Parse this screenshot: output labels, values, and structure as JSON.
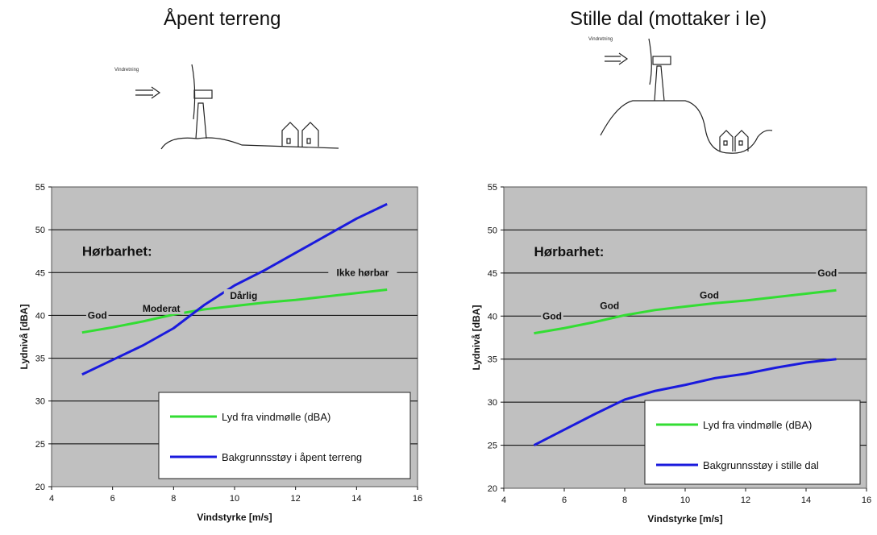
{
  "panels": [
    {
      "title": "Åpent terreng",
      "sketch_label": "Vindretning",
      "heading": "Hørbarhet:",
      "annotations": [
        {
          "text": "God",
          "x": 5.5,
          "y": 40
        },
        {
          "text": "Moderat",
          "x": 7.6,
          "y": 40.8
        },
        {
          "text": "Dårlig",
          "x": 10.3,
          "y": 42.3
        },
        {
          "text": "Ikke hørbar",
          "x": 14.2,
          "y": 45
        }
      ]
    },
    {
      "title": "Stille dal (mottaker i le)",
      "sketch_label": "Vindretning",
      "heading": "Hørbarhet:",
      "annotations": [
        {
          "text": "God",
          "x": 5.6,
          "y": 40
        },
        {
          "text": "God",
          "x": 7.5,
          "y": 41.2
        },
        {
          "text": "God",
          "x": 10.8,
          "y": 42.4
        },
        {
          "text": "God",
          "x": 14.7,
          "y": 45
        }
      ]
    }
  ],
  "colors": {
    "plot_bg": "#c0c0c0",
    "green": "#33dd33",
    "blue": "#1a1add",
    "grid": "#000000"
  },
  "chart_data": [
    {
      "type": "line",
      "xlabel": "Vindstyrke [m/s]",
      "ylabel": "Lydnivå [dBA]",
      "xlim": [
        4,
        16
      ],
      "ylim": [
        20,
        55
      ],
      "xticks": [
        4,
        6,
        8,
        10,
        12,
        14,
        16
      ],
      "yticks": [
        20,
        25,
        30,
        35,
        40,
        45,
        50,
        55
      ],
      "grid": "horizontal",
      "legend_position": "bottom-right",
      "series": [
        {
          "name": "Lyd fra vindmølle (dBA)",
          "color": "#33dd33",
          "x": [
            5,
            6,
            7,
            8,
            9,
            10,
            11,
            12,
            13,
            14,
            15
          ],
          "y": [
            38,
            38.6,
            39.3,
            40.1,
            40.7,
            41.1,
            41.5,
            41.8,
            42.2,
            42.6,
            43
          ]
        },
        {
          "name": "Bakgrunnsstøy i åpent terreng",
          "color": "#1a1add",
          "x": [
            5,
            6,
            7,
            8,
            9,
            10,
            11,
            12,
            13,
            14,
            15
          ],
          "y": [
            33.1,
            34.8,
            36.5,
            38.5,
            41.2,
            43.5,
            45.3,
            47.3,
            49.3,
            51.3,
            53
          ]
        }
      ]
    },
    {
      "type": "line",
      "xlabel": "Vindstyrke [m/s]",
      "ylabel": "Lydnivå [dBA]",
      "xlim": [
        4,
        16
      ],
      "ylim": [
        20,
        55
      ],
      "xticks": [
        4,
        6,
        8,
        10,
        12,
        14,
        16
      ],
      "yticks": [
        20,
        25,
        30,
        35,
        40,
        45,
        50,
        55
      ],
      "grid": "horizontal",
      "legend_position": "bottom-right",
      "series": [
        {
          "name": "Lyd fra vindmølle (dBA)",
          "color": "#33dd33",
          "x": [
            5,
            6,
            7,
            8,
            9,
            10,
            11,
            12,
            13,
            14,
            15
          ],
          "y": [
            38,
            38.6,
            39.3,
            40.1,
            40.7,
            41.1,
            41.5,
            41.8,
            42.2,
            42.6,
            43
          ]
        },
        {
          "name": "Bakgrunnsstøy i stille dal",
          "color": "#1a1add",
          "x": [
            5,
            6,
            7,
            8,
            9,
            10,
            11,
            12,
            13,
            14,
            15
          ],
          "y": [
            25,
            26.8,
            28.6,
            30.3,
            31.3,
            32,
            32.8,
            33.3,
            34,
            34.6,
            35
          ]
        }
      ]
    }
  ]
}
